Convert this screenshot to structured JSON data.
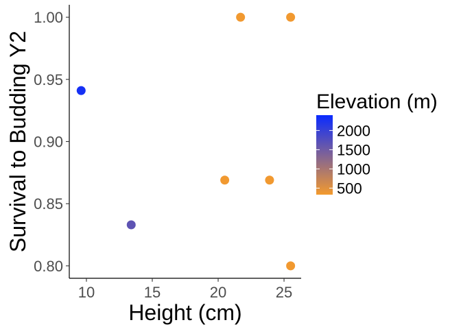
{
  "chart_data": {
    "type": "scatter",
    "title": "",
    "xlabel": "Height (cm)",
    "ylabel": "Survival to Budding Y2",
    "xlim": [
      8.7,
      26.3
    ],
    "ylim": [
      0.79,
      1.01
    ],
    "x_ticks": [
      10,
      15,
      20,
      25
    ],
    "y_ticks": [
      0.8,
      0.85,
      0.9,
      0.95,
      1.0
    ],
    "x_tick_labels": [
      "10",
      "15",
      "20",
      "25"
    ],
    "y_tick_labels": [
      "0.80",
      "0.85",
      "0.90",
      "0.95",
      "1.00"
    ],
    "grid": false,
    "points": [
      {
        "x": 9.6,
        "y": 0.941,
        "elevation": 2300
      },
      {
        "x": 13.4,
        "y": 0.833,
        "elevation": 1650
      },
      {
        "x": 20.5,
        "y": 0.869,
        "elevation": 350
      },
      {
        "x": 21.7,
        "y": 1.0,
        "elevation": 350
      },
      {
        "x": 23.9,
        "y": 0.869,
        "elevation": 350
      },
      {
        "x": 25.5,
        "y": 1.0,
        "elevation": 350
      },
      {
        "x": 25.5,
        "y": 0.8,
        "elevation": 350
      }
    ],
    "legend": {
      "title": "Elevation (m)",
      "position": "right",
      "color_low": "#F39A2E",
      "color_high": "#0A2BFF",
      "range": [
        330,
        2400
      ],
      "breaks": [
        500,
        1000,
        1500,
        2000
      ],
      "break_labels": [
        "500",
        "1000",
        "1500",
        "2000"
      ]
    }
  }
}
